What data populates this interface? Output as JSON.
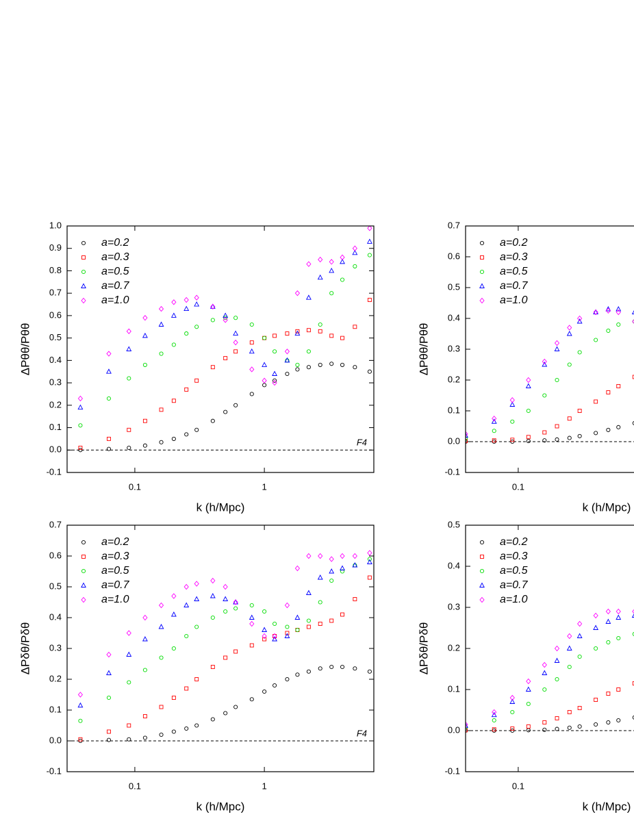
{
  "chart_data": [
    {
      "type": "scatter",
      "xlabel": "k (h/Mpc)",
      "ylabel": "ΔPθθ/Pθθ",
      "annotation": "F4",
      "xlog": true,
      "legend": "upper left",
      "reference_line": 0,
      "xlim": [
        0.03,
        7
      ],
      "ylim": [
        -0.1,
        1.0
      ],
      "xticks": [
        0.1,
        1
      ],
      "yticks": [
        -0.1,
        {
          "value": 0,
          "label": "0.0"
        },
        0.1,
        0.2,
        0.3,
        0.4,
        0.5,
        0.6,
        0.7,
        0.8,
        0.9,
        {
          "value": 1,
          "label": "1.0"
        }
      ],
      "x": [
        0.038,
        0.063,
        0.09,
        0.12,
        0.16,
        0.2,
        0.25,
        0.3,
        0.4,
        0.5,
        0.6,
        0.8,
        1.0,
        1.2,
        1.5,
        1.8,
        2.2,
        2.7,
        3.3,
        4,
        5,
        6.5
      ],
      "series": [
        {
          "name": "a=0.2",
          "color": "#000000",
          "marker": "circle",
          "values": [
            0.0,
            0.005,
            0.01,
            0.02,
            0.035,
            0.05,
            0.07,
            0.09,
            0.13,
            0.17,
            0.2,
            0.25,
            0.29,
            0.31,
            0.34,
            0.36,
            0.37,
            0.38,
            0.385,
            0.38,
            0.37,
            0.35
          ]
        },
        {
          "name": "a=0.3",
          "color": "#ff0000",
          "marker": "square",
          "values": [
            0.01,
            0.05,
            0.09,
            0.13,
            0.18,
            0.22,
            0.27,
            0.31,
            0.37,
            0.41,
            0.44,
            0.48,
            0.5,
            0.51,
            0.52,
            0.53,
            0.535,
            0.53,
            0.51,
            0.5,
            0.55,
            0.67
          ]
        },
        {
          "name": "a=0.5",
          "color": "#00dd00",
          "marker": "circle",
          "values": [
            0.11,
            0.23,
            0.32,
            0.38,
            0.43,
            0.47,
            0.52,
            0.55,
            0.58,
            0.59,
            0.59,
            0.56,
            0.5,
            0.44,
            0.4,
            0.38,
            0.44,
            0.56,
            0.7,
            0.76,
            0.82,
            0.87
          ]
        },
        {
          "name": "a=0.7",
          "color": "#0000ff",
          "marker": "triangle",
          "values": [
            0.19,
            0.35,
            0.45,
            0.51,
            0.56,
            0.6,
            0.63,
            0.65,
            0.64,
            0.6,
            0.52,
            0.44,
            0.38,
            0.34,
            0.4,
            0.52,
            0.68,
            0.77,
            0.8,
            0.84,
            0.88,
            0.93
          ]
        },
        {
          "name": "a=1.0",
          "color": "#ff00ff",
          "marker": "diamond",
          "values": [
            0.23,
            0.43,
            0.53,
            0.59,
            0.63,
            0.66,
            0.67,
            0.68,
            0.64,
            0.58,
            0.48,
            0.36,
            0.31,
            0.3,
            0.44,
            0.7,
            0.83,
            0.85,
            0.84,
            0.86,
            0.9,
            0.99
          ]
        }
      ]
    },
    {
      "type": "scatter",
      "xlabel": "k (h/Mpc)",
      "ylabel": "ΔPθθ/Pθθ",
      "xlog": true,
      "legend": "upper left",
      "reference_line": 0,
      "xlim": [
        0.039,
        9.4
      ],
      "ylim": [
        -0.1,
        0.7
      ],
      "xticks": [
        0.1
      ],
      "yticks": [
        -0.1,
        {
          "value": 0,
          "label": "0.0"
        },
        0.1,
        0.2,
        0.3,
        0.4,
        0.5,
        0.6,
        0.7
      ],
      "x": [
        0.039,
        0.065,
        0.09,
        0.12,
        0.16,
        0.2,
        0.25,
        0.3,
        0.4,
        0.5,
        0.6,
        0.8
      ],
      "series": [
        {
          "name": "a=0.2",
          "color": "#000000",
          "marker": "circle",
          "values": [
            0,
            0,
            0,
            0.002,
            0.004,
            0.007,
            0.012,
            0.018,
            0.028,
            0.038,
            0.047,
            0.06
          ]
        },
        {
          "name": "a=0.3",
          "color": "#ff0000",
          "marker": "square",
          "values": [
            0.002,
            0.004,
            0.006,
            0.015,
            0.03,
            0.05,
            0.075,
            0.1,
            0.13,
            0.16,
            0.18,
            0.21
          ]
        },
        {
          "name": "a=0.5",
          "color": "#00dd00",
          "marker": "circle",
          "values": [
            0.01,
            0.035,
            0.065,
            0.1,
            0.15,
            0.2,
            0.25,
            0.29,
            0.33,
            0.36,
            0.38,
            0.39
          ]
        },
        {
          "name": "a=0.7",
          "color": "#0000ff",
          "marker": "triangle",
          "values": [
            0.02,
            0.065,
            0.12,
            0.18,
            0.25,
            0.3,
            0.35,
            0.39,
            0.42,
            0.43,
            0.43,
            0.42
          ]
        },
        {
          "name": "a=1.0",
          "color": "#ff00ff",
          "marker": "diamond",
          "values": [
            0.025,
            0.075,
            0.135,
            0.2,
            0.26,
            0.32,
            0.37,
            0.4,
            0.42,
            0.425,
            0.42,
            0.39
          ]
        }
      ]
    },
    {
      "type": "scatter",
      "xlabel": "k (h/Mpc)",
      "ylabel": "ΔPδθ/Pδθ",
      "annotation": "F4",
      "xlog": true,
      "legend": "upper left",
      "reference_line": 0,
      "xlim": [
        0.03,
        7
      ],
      "ylim": [
        -0.1,
        0.7
      ],
      "xticks": [
        0.1,
        1
      ],
      "yticks": [
        -0.1,
        {
          "value": 0,
          "label": "0.0"
        },
        0.1,
        0.2,
        0.3,
        0.4,
        0.5,
        0.6,
        0.7
      ],
      "x": [
        0.038,
        0.063,
        0.09,
        0.12,
        0.16,
        0.2,
        0.25,
        0.3,
        0.4,
        0.5,
        0.6,
        0.8,
        1.0,
        1.2,
        1.5,
        1.8,
        2.2,
        2.7,
        3.3,
        4,
        5,
        6.5
      ],
      "series": [
        {
          "name": "a=0.2",
          "color": "#000000",
          "marker": "circle",
          "values": [
            0,
            0.003,
            0.005,
            0.01,
            0.02,
            0.03,
            0.04,
            0.05,
            0.07,
            0.09,
            0.11,
            0.135,
            0.16,
            0.18,
            0.2,
            0.215,
            0.225,
            0.235,
            0.24,
            0.24,
            0.235,
            0.225
          ]
        },
        {
          "name": "a=0.3",
          "color": "#ff0000",
          "marker": "square",
          "values": [
            0.005,
            0.03,
            0.05,
            0.08,
            0.11,
            0.14,
            0.17,
            0.2,
            0.24,
            0.27,
            0.29,
            0.31,
            0.33,
            0.34,
            0.35,
            0.36,
            0.37,
            0.38,
            0.39,
            0.41,
            0.46,
            0.53
          ]
        },
        {
          "name": "a=0.5",
          "color": "#00dd00",
          "marker": "circle",
          "values": [
            0.065,
            0.14,
            0.19,
            0.23,
            0.27,
            0.3,
            0.34,
            0.37,
            0.4,
            0.42,
            0.43,
            0.44,
            0.42,
            0.38,
            0.37,
            0.36,
            0.39,
            0.45,
            0.52,
            0.55,
            0.57,
            0.59
          ]
        },
        {
          "name": "a=0.7",
          "color": "#0000ff",
          "marker": "triangle",
          "values": [
            0.115,
            0.22,
            0.28,
            0.33,
            0.37,
            0.41,
            0.44,
            0.46,
            0.47,
            0.46,
            0.45,
            0.4,
            0.36,
            0.33,
            0.34,
            0.4,
            0.48,
            0.53,
            0.55,
            0.56,
            0.57,
            0.58
          ]
        },
        {
          "name": "a=1.0",
          "color": "#ff00ff",
          "marker": "diamond",
          "values": [
            0.15,
            0.28,
            0.35,
            0.4,
            0.44,
            0.47,
            0.5,
            0.51,
            0.52,
            0.5,
            0.45,
            0.38,
            0.34,
            0.34,
            0.44,
            0.56,
            0.6,
            0.6,
            0.59,
            0.6,
            0.6,
            0.61
          ]
        }
      ]
    },
    {
      "type": "scatter",
      "xlabel": "k (h/Mpc)",
      "ylabel": "ΔPδθ/Pδθ",
      "xlog": true,
      "legend": "upper left",
      "reference_line": 0,
      "xlim": [
        0.039,
        9.4
      ],
      "ylim": [
        -0.1,
        0.5
      ],
      "xticks": [
        0.1
      ],
      "yticks": [
        -0.1,
        {
          "value": 0,
          "label": "0.0"
        },
        0.1,
        0.2,
        0.3,
        0.4,
        0.5
      ],
      "x": [
        0.039,
        0.065,
        0.09,
        0.12,
        0.16,
        0.2,
        0.25,
        0.3,
        0.4,
        0.5,
        0.6,
        0.8
      ],
      "series": [
        {
          "name": "a=0.2",
          "color": "#000000",
          "marker": "circle",
          "values": [
            0,
            0,
            0,
            0.001,
            0.002,
            0.004,
            0.007,
            0.01,
            0.015,
            0.02,
            0.025,
            0.032
          ]
        },
        {
          "name": "a=0.3",
          "color": "#ff0000",
          "marker": "square",
          "values": [
            0.001,
            0.003,
            0.005,
            0.01,
            0.02,
            0.03,
            0.045,
            0.055,
            0.075,
            0.09,
            0.1,
            0.115
          ]
        },
        {
          "name": "a=0.5",
          "color": "#00dd00",
          "marker": "circle",
          "values": [
            0.008,
            0.025,
            0.045,
            0.065,
            0.1,
            0.125,
            0.155,
            0.18,
            0.2,
            0.215,
            0.225,
            0.235
          ]
        },
        {
          "name": "a=0.7",
          "color": "#0000ff",
          "marker": "triangle",
          "values": [
            0.012,
            0.038,
            0.07,
            0.1,
            0.14,
            0.17,
            0.2,
            0.23,
            0.25,
            0.265,
            0.275,
            0.28
          ]
        },
        {
          "name": "a=1.0",
          "color": "#ff00ff",
          "marker": "diamond",
          "values": [
            0.015,
            0.045,
            0.08,
            0.12,
            0.16,
            0.2,
            0.23,
            0.26,
            0.28,
            0.29,
            0.29,
            0.29
          ]
        }
      ]
    }
  ]
}
